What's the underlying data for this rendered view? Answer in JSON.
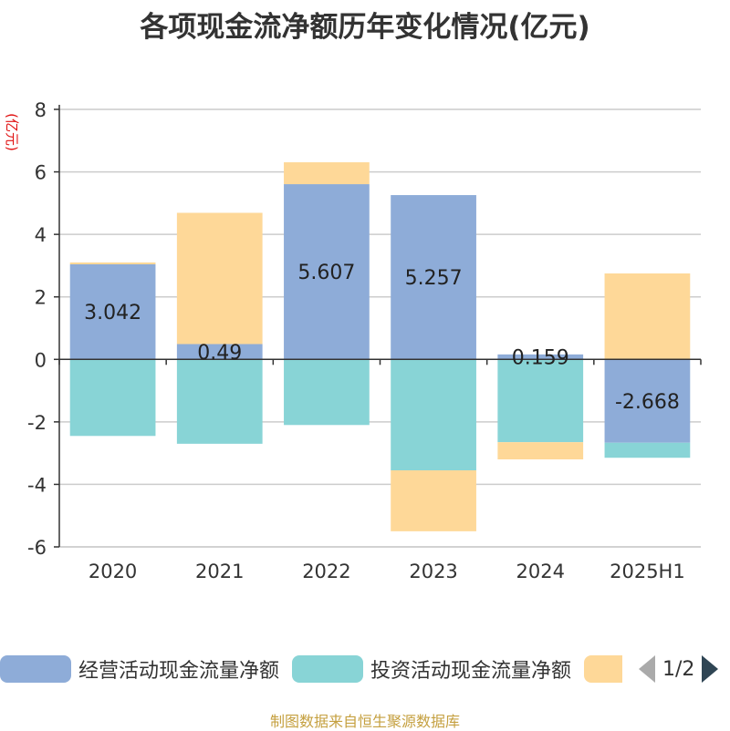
{
  "chart_data": {
    "type": "bar",
    "stacked": true,
    "title": "各项现金流净额历年变化情况(亿元)",
    "ylabel": "(亿元)",
    "ylim": [
      -6,
      8
    ],
    "yticks": [
      8,
      6,
      4,
      2,
      0,
      -2,
      -4,
      -6
    ],
    "grid": true,
    "legend_position": "bottom",
    "categories": [
      "2020",
      "2021",
      "2022",
      "2023",
      "2024",
      "2025H1"
    ],
    "series": [
      {
        "name": "经营活动现金流量净额",
        "color": "#8eacd8",
        "values": [
          3.042,
          0.49,
          5.607,
          5.257,
          0.159,
          -2.668
        ],
        "labels": [
          "3.042",
          "0.49",
          "5.607",
          "5.257",
          "0.159",
          "-2.668"
        ]
      },
      {
        "name": "投资活动现金流量净额",
        "color": "#88d4d6",
        "values": [
          -2.45,
          -2.7,
          -2.1,
          -3.55,
          -2.65,
          -0.48
        ]
      },
      {
        "name": "",
        "color": "#fed898",
        "values": [
          0.06,
          4.2,
          0.7,
          -1.95,
          -0.55,
          2.75
        ]
      }
    ]
  },
  "legend": {
    "page": "1/2"
  },
  "source": "制图数据来自恒生聚源数据库"
}
